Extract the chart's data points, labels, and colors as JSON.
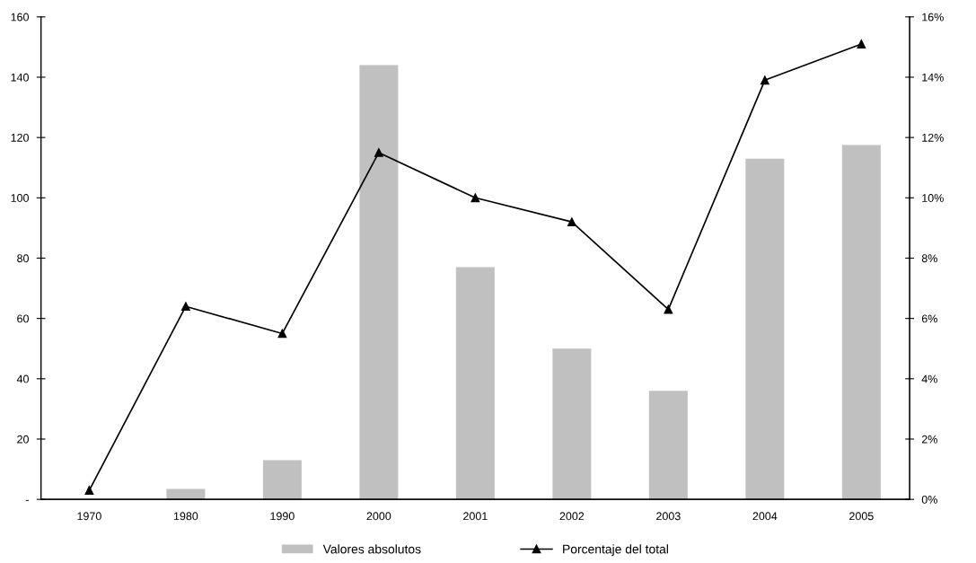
{
  "chart_data": {
    "type": "bar",
    "categories": [
      "1970",
      "1980",
      "1990",
      "2000",
      "2001",
      "2002",
      "2003",
      "2004",
      "2005"
    ],
    "series": [
      {
        "name": "Valores absolutos",
        "color": "#c0c0c0",
        "values": [
          0,
          3.5,
          13,
          144,
          77,
          50,
          36,
          113,
          117.5
        ]
      },
      {
        "name": "Porcentaje del total",
        "type": "line",
        "axis": "y2",
        "color": "#000000",
        "values": [
          0.3,
          6.4,
          5.5,
          11.5,
          10.0,
          9.2,
          6.3,
          13.9,
          15.1
        ]
      }
    ],
    "ylim": [
      0,
      160
    ],
    "yticks": [
      {
        "value": 0,
        "label": "-"
      },
      20,
      40,
      60,
      80,
      100,
      120,
      140,
      160
    ],
    "y2lim": [
      0,
      16
    ],
    "y2ticks": [
      {
        "value": 0,
        "label": "0%"
      },
      {
        "value": 2,
        "label": "2%"
      },
      {
        "value": 4,
        "label": "4%"
      },
      {
        "value": 6,
        "label": "6%"
      },
      {
        "value": 8,
        "label": "8%"
      },
      {
        "value": 10,
        "label": "10%"
      },
      {
        "value": 12,
        "label": "12%"
      },
      {
        "value": 14,
        "label": "14%"
      },
      {
        "value": 16,
        "label": "16%"
      }
    ],
    "marker": "triangle",
    "line_style": "solid",
    "grid": false,
    "legend": "bottom"
  }
}
